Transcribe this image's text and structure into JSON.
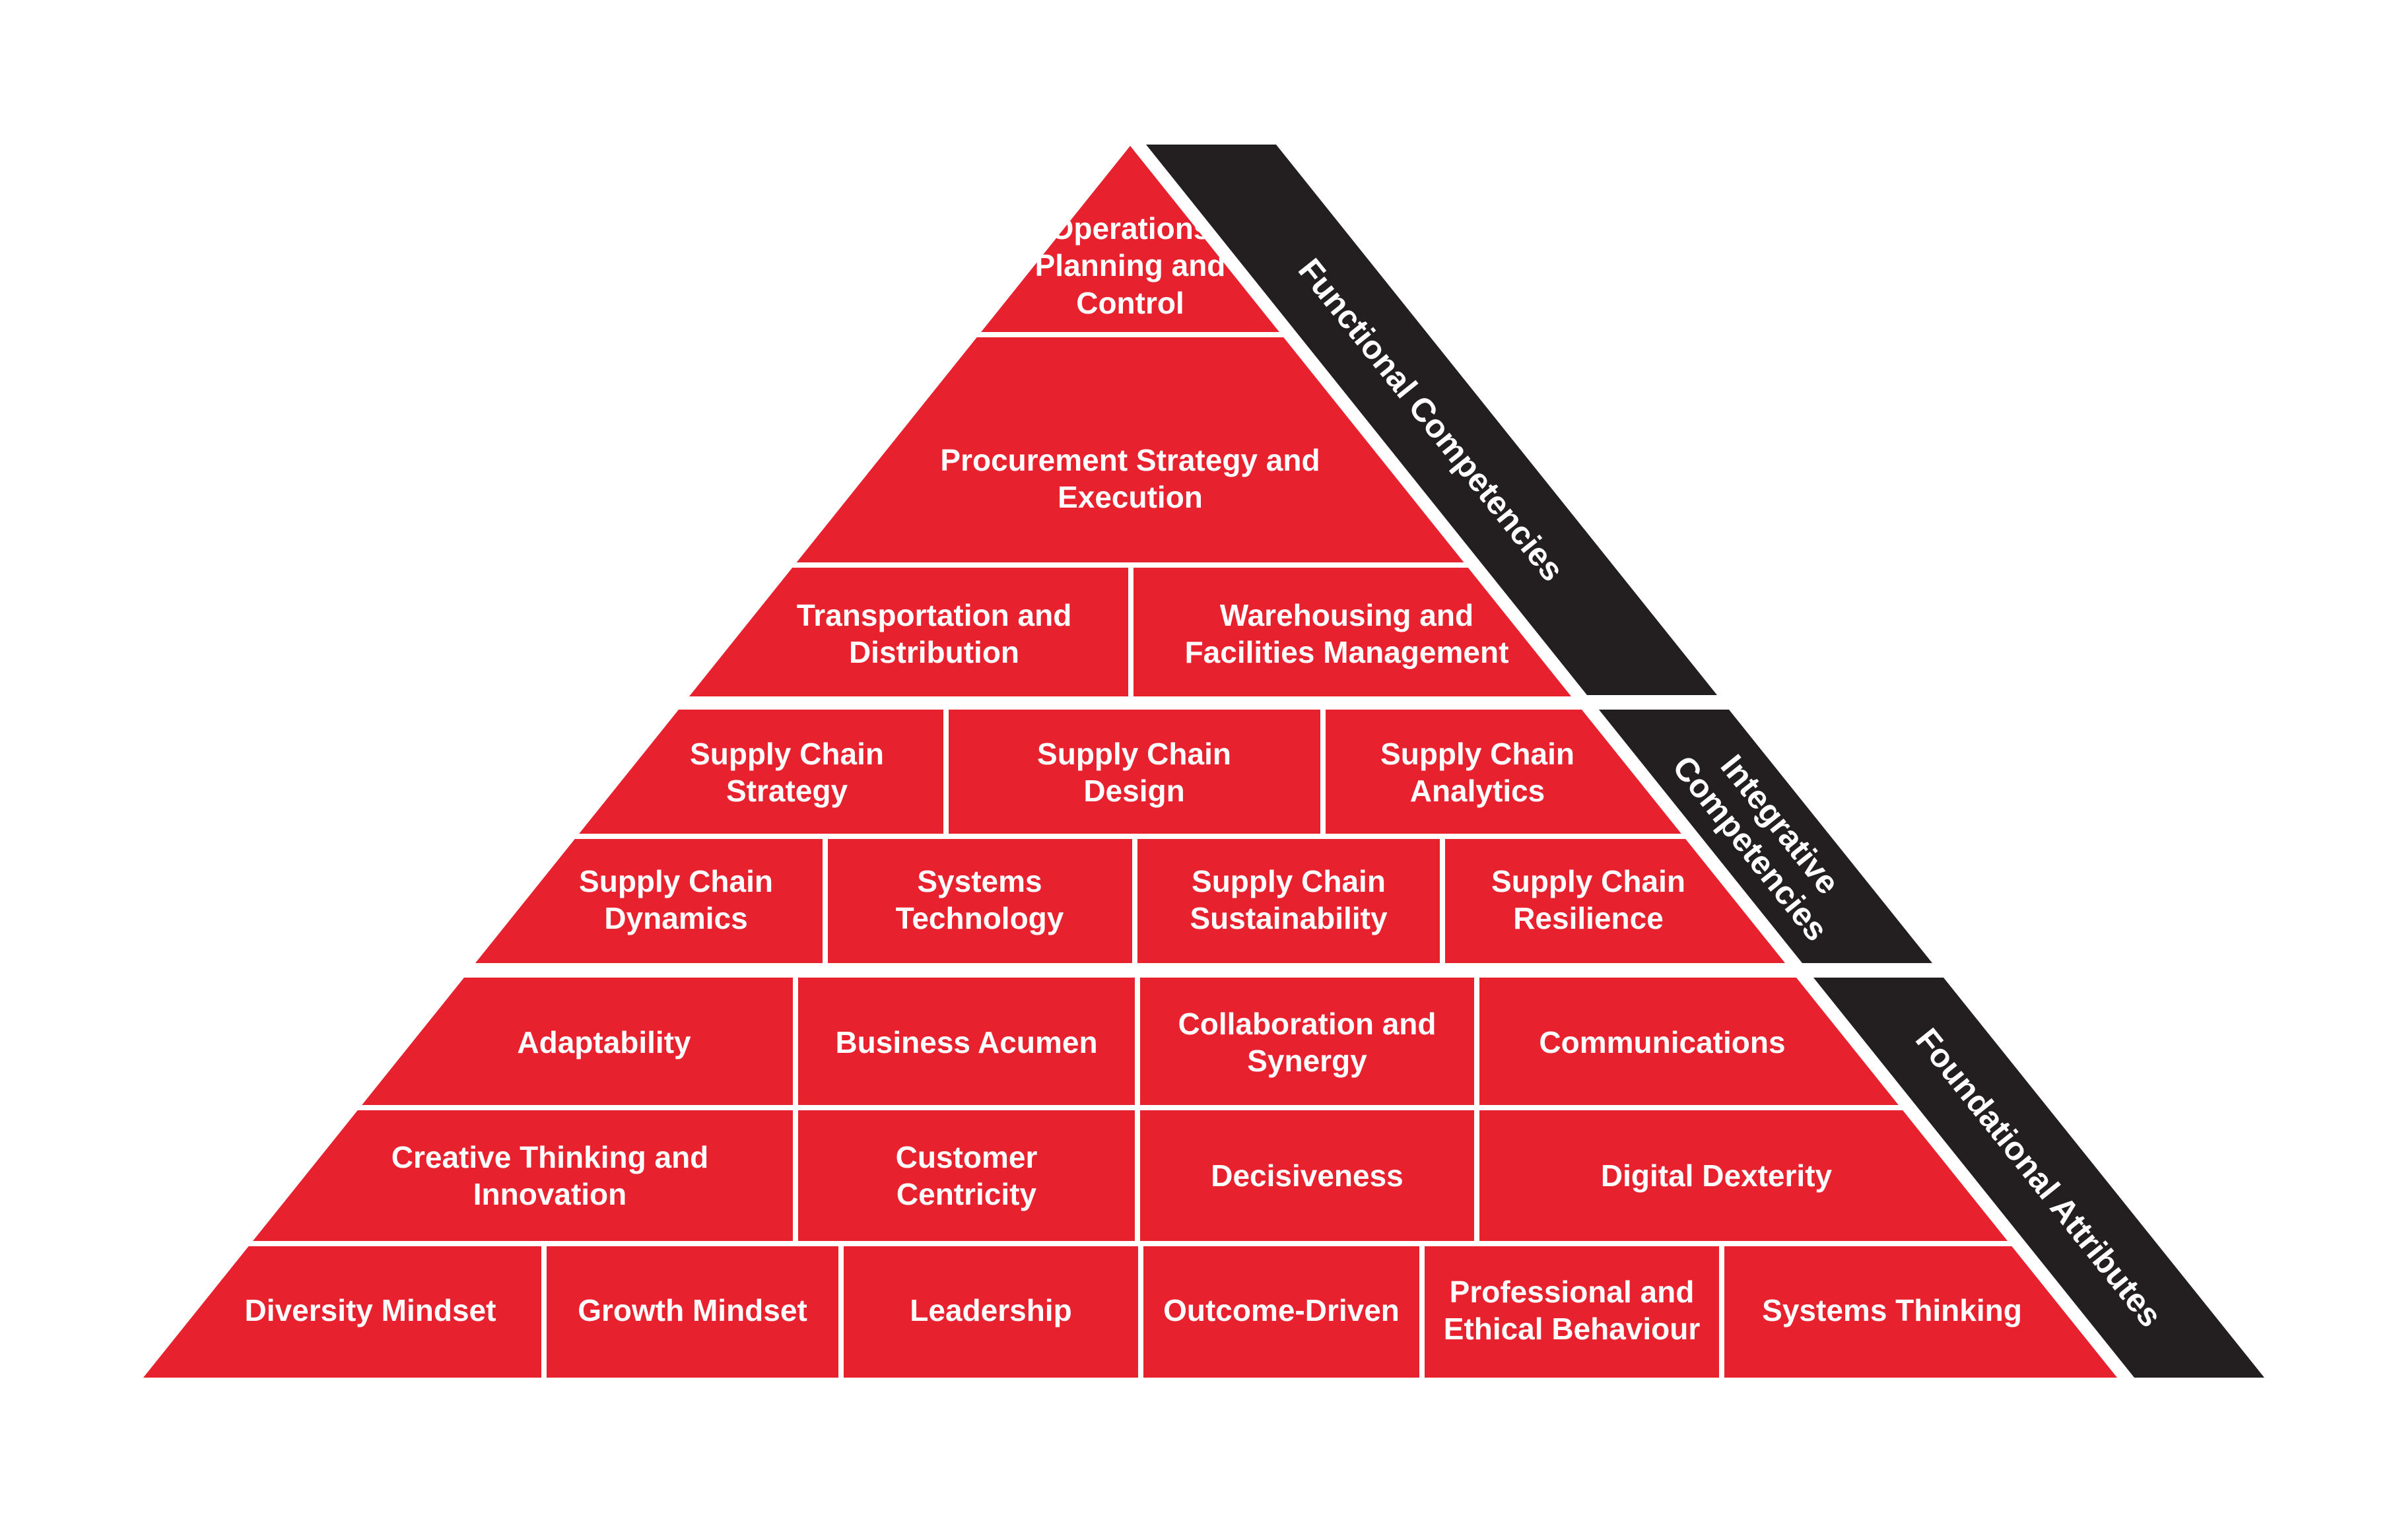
{
  "colors": {
    "pyramid_red": "#E8212E",
    "band_black": "#231F20",
    "gap_white": "#FFFFFF",
    "text_white": "#FFFFFF"
  },
  "bands": [
    {
      "label": "Functional Competencies"
    },
    {
      "label": "Integrative\nCompetencies"
    },
    {
      "label": "Foundational Attributes"
    }
  ],
  "tiers": [
    {
      "rows": [
        {
          "cells": [
            {
              "label": "Operations\nPlanning and\nControl"
            }
          ]
        },
        {
          "cells": [
            {
              "label": "Procurement Strategy and\nExecution"
            }
          ]
        },
        {
          "cells": [
            {
              "label": "Transportation and\nDistribution"
            },
            {
              "label": "Warehousing and\nFacilities Management"
            }
          ]
        }
      ]
    },
    {
      "rows": [
        {
          "cells": [
            {
              "label": "Supply Chain\nStrategy"
            },
            {
              "label": "Supply Chain\nDesign"
            },
            {
              "label": "Supply Chain\nAnalytics"
            }
          ]
        },
        {
          "cells": [
            {
              "label": "Supply Chain\nDynamics"
            },
            {
              "label": "Systems\nTechnology"
            },
            {
              "label": "Supply Chain\nSustainability"
            },
            {
              "label": "Supply Chain\nResilience"
            }
          ]
        }
      ]
    },
    {
      "rows": [
        {
          "cells": [
            {
              "label": "Adaptability"
            },
            {
              "label": "Business Acumen"
            },
            {
              "label": "Collaboration and\nSynergy"
            },
            {
              "label": "Communications"
            }
          ]
        },
        {
          "cells": [
            {
              "label": "Creative Thinking and\nInnovation"
            },
            {
              "label": "Customer\nCentricity"
            },
            {
              "label": "Decisiveness"
            },
            {
              "label": "Digital Dexterity"
            }
          ]
        },
        {
          "cells": [
            {
              "label": "Diversity Mindset"
            },
            {
              "label": "Growth Mindset"
            },
            {
              "label": "Leadership"
            },
            {
              "label": "Outcome-Driven"
            },
            {
              "label": "Professional and\nEthical Behaviour"
            },
            {
              "label": "Systems Thinking"
            }
          ]
        }
      ]
    }
  ]
}
